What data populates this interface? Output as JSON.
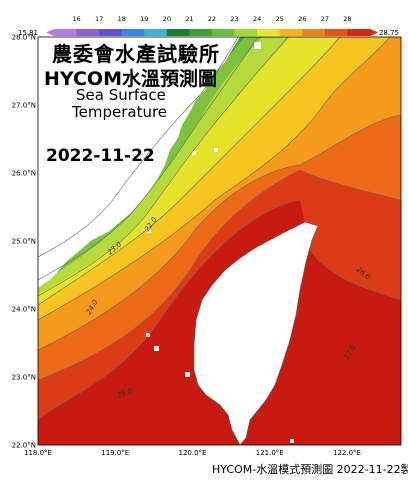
{
  "map": {
    "title_zh": "農委會水產試驗所",
    "title_model": "HYCOM水溫預測圖",
    "title_en_line1": "Sea Surface",
    "title_en_line2": "Temperature",
    "date": "2022-11-22",
    "footer": "HYCOM-水溫模式預測圖 2022-11-22製圖",
    "colorbar": {
      "min_label": "15.81",
      "max_label": "28.75",
      "ticks": [
        "16",
        "17",
        "18",
        "19",
        "20",
        "21",
        "22",
        "23",
        "24",
        "25",
        "26",
        "27",
        "28"
      ],
      "colors": [
        "#b87be0",
        "#8a5fd8",
        "#5a55d8",
        "#3a86e0",
        "#3fb0d8",
        "#1a7d2e",
        "#3fa035",
        "#6abf3a",
        "#a8d838",
        "#e8e628",
        "#f4b41a",
        "#f08018",
        "#e8501a",
        "#d42818"
      ]
    },
    "lat_labels": [
      "28.0°N",
      "27.0°N",
      "26.0°N",
      "25.0°N",
      "24.0°N",
      "23.0°N",
      "22.0°N"
    ],
    "lon_labels": [
      "118.0°E",
      "119.0°E",
      "120.0°E",
      "121.0°E",
      "122.0°E"
    ],
    "contour_labels": [
      "22.0",
      "23.0",
      "24.0",
      "25.0",
      "26.0",
      "27.0"
    ]
  }
}
